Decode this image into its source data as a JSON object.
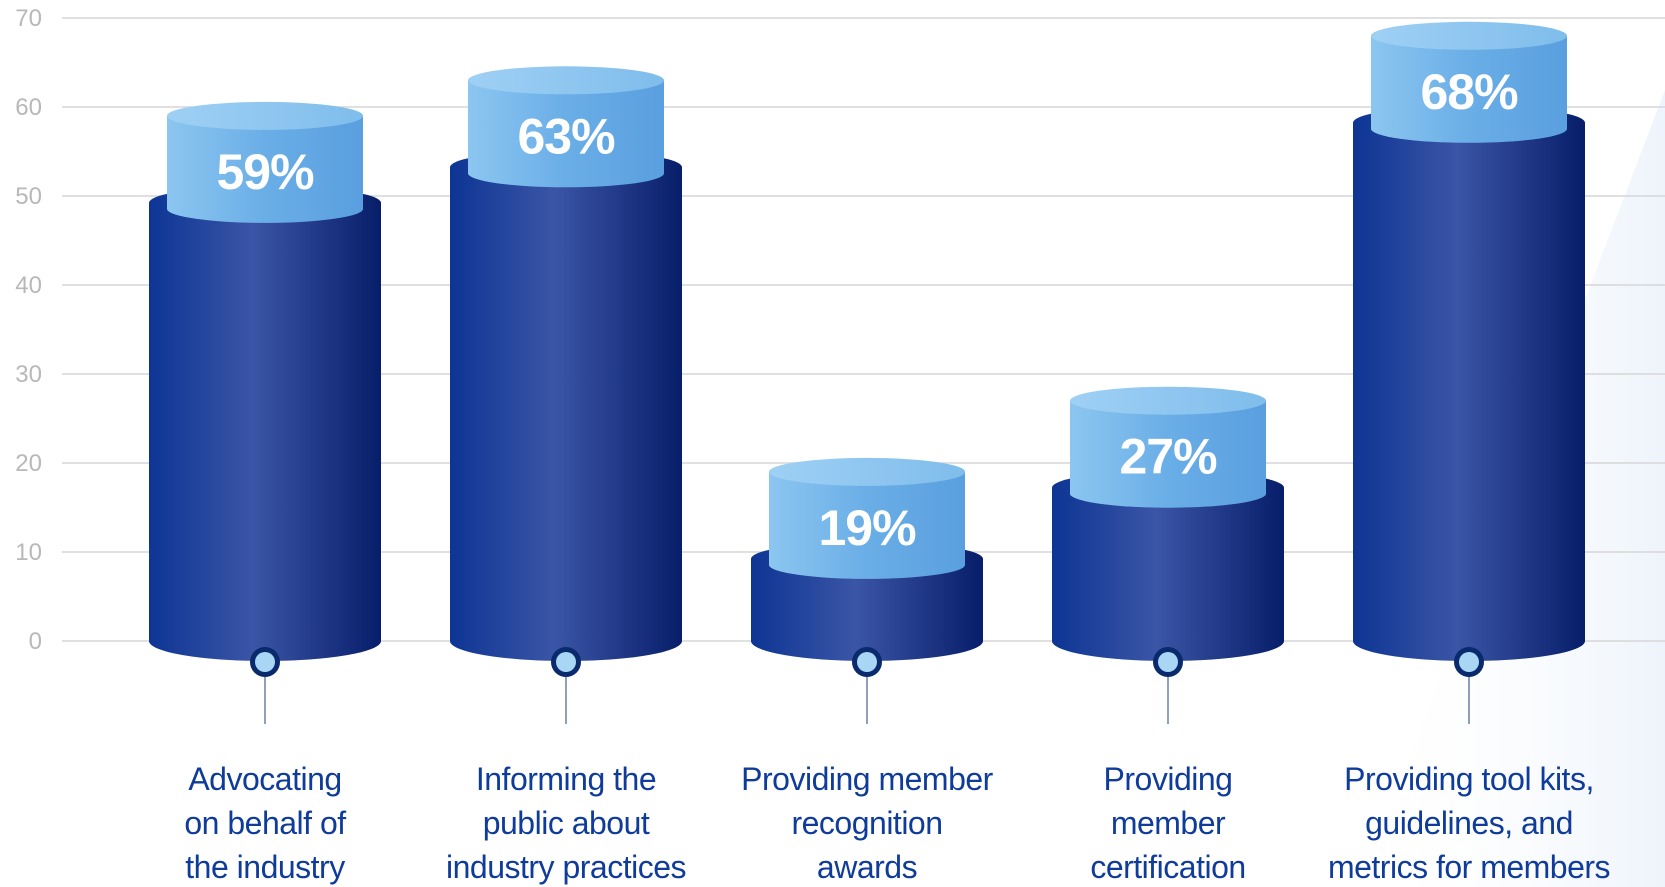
{
  "chart_data": {
    "type": "bar",
    "title": "",
    "xlabel": "",
    "ylabel": "",
    "ylim": [
      0,
      70
    ],
    "yticks": [
      0,
      10,
      20,
      30,
      40,
      50,
      60,
      70
    ],
    "grid": true,
    "categories": [
      "Advocating on behalf of the industry",
      "Informing the public about industry practices",
      "Providing member recognition awards",
      "Providing member certification",
      "Providing tool kits, guidelines, and metrics for members"
    ],
    "category_lines": [
      [
        "Advocating",
        "on behalf of",
        "the industry"
      ],
      [
        "Informing the",
        "public about",
        "industry practices"
      ],
      [
        "Providing member",
        "recognition",
        "awards"
      ],
      [
        "Providing",
        "member",
        "certification"
      ],
      [
        "Providing tool kits,",
        "guidelines, and",
        "metrics for members"
      ]
    ],
    "values": [
      59,
      63,
      19,
      27,
      68
    ],
    "value_labels": [
      "59%",
      "63%",
      "19%",
      "27%",
      "68%"
    ],
    "colors": {
      "bar_dark": "#0a2a78",
      "bar_mid": "#3a57a8",
      "cap_light": "#6fb4ea",
      "cap_top": "#a9d6f5",
      "grid": "#d6d6d6",
      "axis_text": "#b8b8b8",
      "category_text": "#0f3c9a",
      "marker_fill": "#a9d6f5",
      "marker_ring": "#0a2a6e"
    }
  }
}
